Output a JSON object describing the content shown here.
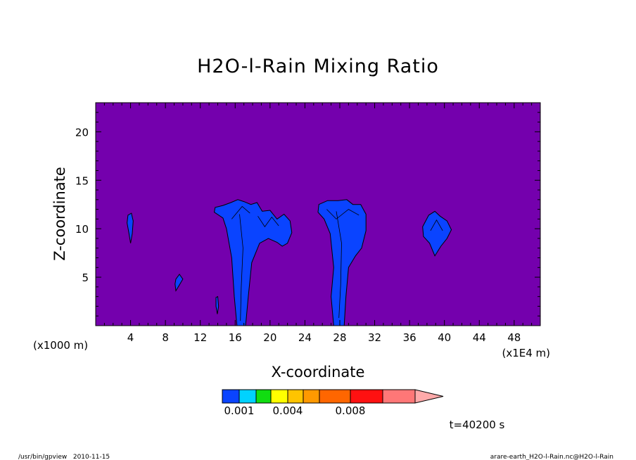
{
  "chart_data": {
    "type": "heatmap",
    "title": "H2O-l-Rain Mixing Ratio",
    "xlabel": "X-coordinate",
    "ylabel": "Z-coordinate",
    "x_unit_left": "(x1000 m)",
    "x_unit_right": "(x1E4 m)",
    "xlim": [
      0,
      51
    ],
    "ylim": [
      0,
      23
    ],
    "xticks": [
      4,
      8,
      12,
      16,
      20,
      24,
      28,
      32,
      36,
      40,
      44,
      48
    ],
    "yticks": [
      5,
      10,
      15,
      20
    ],
    "background_color": "#7400ad",
    "contour_fill_color": "#0a44ff",
    "colorbar": {
      "colors": [
        "#0a44ff",
        "#00d2ff",
        "#11dd11",
        "#ffff00",
        "#ffc400",
        "#ff9900",
        "#ff6600",
        "#ff1111",
        "#ff7777",
        "#ffaaaa"
      ],
      "tick_labels": [
        "0.001",
        "0.004",
        "0.008"
      ],
      "extend": "max"
    },
    "regions": [
      {
        "name": "cell-x4",
        "x": [
          3.6,
          4.3
        ],
        "z": [
          8.5,
          11.5
        ]
      },
      {
        "name": "cell-x9",
        "x": [
          9,
          10
        ],
        "z": [
          3.6,
          5.3
        ]
      },
      {
        "name": "cell-x14",
        "x": [
          13.8,
          14.1
        ],
        "z": [
          1.2,
          3.0
        ]
      },
      {
        "name": "storm-x16-22",
        "x": [
          13.5,
          22.5
        ],
        "z": [
          0,
          13
        ]
      },
      {
        "name": "storm-x26-31",
        "x": [
          25.5,
          31
        ],
        "z": [
          0,
          13
        ]
      },
      {
        "name": "cell-x39",
        "x": [
          37.5,
          40.8
        ],
        "z": [
          7.2,
          11.8
        ]
      }
    ],
    "time_label": "t=40200 s"
  },
  "footer": {
    "left": "/usr/bin/gpview   2010-11-15",
    "right": "arare-earth_H2O-l-Rain.nc@H2O-l-Rain"
  }
}
